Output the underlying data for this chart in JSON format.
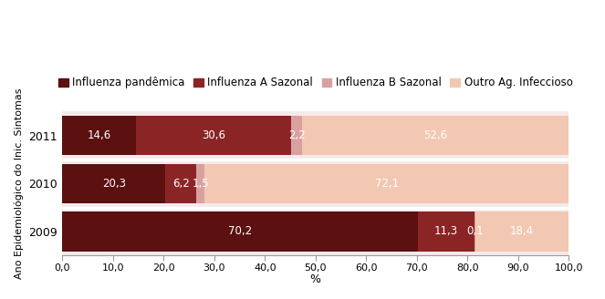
{
  "years": [
    "2009",
    "2010",
    "2011"
  ],
  "series": {
    "Influenza pandêmica": [
      70.2,
      20.3,
      14.6
    ],
    "Influenza A Sazonal": [
      11.3,
      6.2,
      30.6
    ],
    "Influenza B Sazonal": [
      0.1,
      1.5,
      2.2
    ],
    "Outro Ag. Infeccioso": [
      18.4,
      72.1,
      52.6
    ]
  },
  "colors": {
    "Influenza pandêmica": "#5c1010",
    "Influenza A Sazonal": "#8b2525",
    "Influenza B Sazonal": "#daa0a0",
    "Outro Ag. Infeccioso": "#f2c8b2"
  },
  "xlabel": "%",
  "ylabel": "Ano Epidemiológico do Inic. Sintomas",
  "xlim": [
    0,
    100
  ],
  "xticks": [
    0.0,
    10.0,
    20.0,
    30.0,
    40.0,
    50.0,
    60.0,
    70.0,
    80.0,
    90.0,
    100.0
  ],
  "xtick_labels": [
    "0,0",
    "10,0",
    "20,0",
    "30,0",
    "40,0",
    "50,0",
    "60,0",
    "70,0",
    "80,0",
    "90,0",
    "100,0"
  ],
  "bar_height": 0.82,
  "background_color": "#f5eaea",
  "text_color": "#ffffff",
  "label_fontsize": 8.5,
  "legend_fontsize": 8.5,
  "separator_color": "#ffffff",
  "ytick_fontsize": 9,
  "xtick_fontsize": 8
}
